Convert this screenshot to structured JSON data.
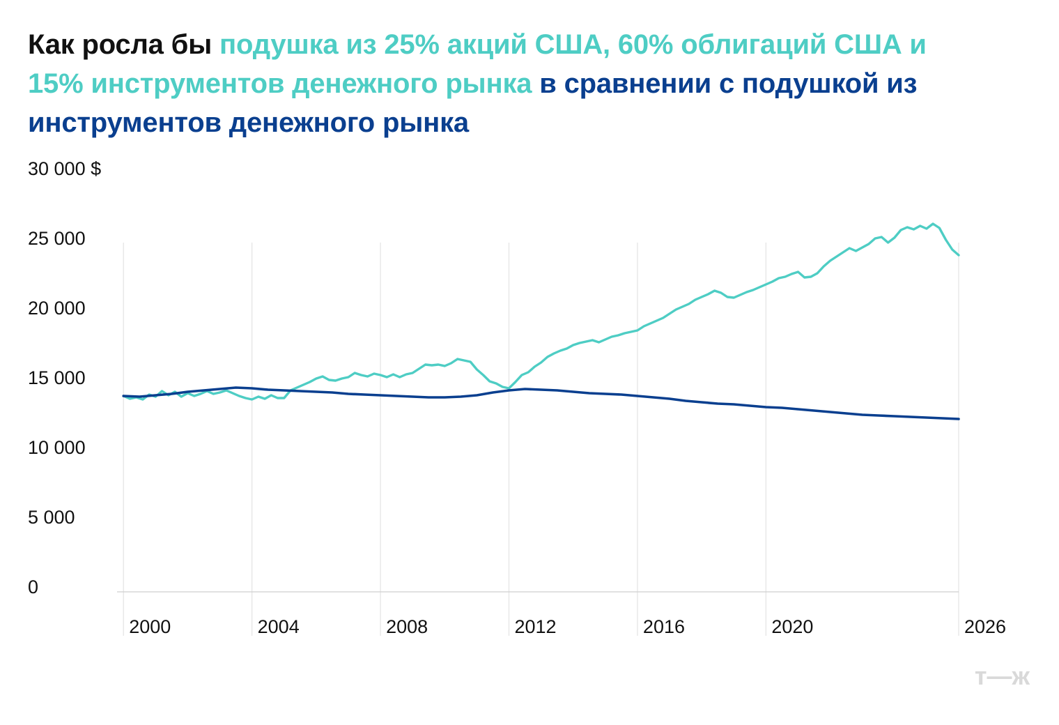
{
  "title": {
    "part1": "Как росла бы ",
    "part2": "подушка из 25% акций США, 60% облигаций США и 15% инструментов денежного рынка",
    "part3": " в сравнении с подушкой из инструментов денежного рынка",
    "color_part1": "#111111",
    "color_part2": "#4ecdc4",
    "color_part3": "#0a3f8f"
  },
  "logo": "т—ж",
  "chart_data": {
    "type": "line",
    "title": "Как росла бы подушка из 25% акций США, 60% облигаций США и 15% инструментов денежного рынка в сравнении с подушкой из инструментов денежного рынка",
    "xlabel": "",
    "ylabel": "",
    "xlim": [
      1999.8,
      2026.0
    ],
    "ylim": [
      0,
      30000
    ],
    "yticks": [
      {
        "value": 0,
        "label": "0"
      },
      {
        "value": 5000,
        "label": "5 000"
      },
      {
        "value": 10000,
        "label": "10 000"
      },
      {
        "value": 15000,
        "label": "15 000"
      },
      {
        "value": 20000,
        "label": "20 000"
      },
      {
        "value": 25000,
        "label": "25 000"
      },
      {
        "value": 30000,
        "label": "30 000 $"
      }
    ],
    "xticks": [
      {
        "value": 2000,
        "label": "2000"
      },
      {
        "value": 2004,
        "label": "2004"
      },
      {
        "value": 2008,
        "label": "2008"
      },
      {
        "value": 2012,
        "label": "2012"
      },
      {
        "value": 2016,
        "label": "2016"
      },
      {
        "value": 2020,
        "label": "2020"
      },
      {
        "value": 2026,
        "label": "2026"
      }
    ],
    "grid": {
      "vertical": true,
      "horizontal": false
    },
    "legend": "none",
    "series": [
      {
        "color": "#4ecdc4",
        "points": [
          [
            2000.0,
            13700
          ],
          [
            2000.2,
            13500
          ],
          [
            2000.4,
            13600
          ],
          [
            2000.6,
            13450
          ],
          [
            2000.8,
            13800
          ],
          [
            2001.0,
            13650
          ],
          [
            2001.2,
            14050
          ],
          [
            2001.4,
            13750
          ],
          [
            2001.6,
            14000
          ],
          [
            2001.8,
            13650
          ],
          [
            2002.0,
            13900
          ],
          [
            2002.2,
            13700
          ],
          [
            2002.4,
            13850
          ],
          [
            2002.6,
            14050
          ],
          [
            2002.8,
            13850
          ],
          [
            2003.0,
            13950
          ],
          [
            2003.2,
            14100
          ],
          [
            2003.4,
            13900
          ],
          [
            2003.6,
            13700
          ],
          [
            2003.8,
            13550
          ],
          [
            2004.0,
            13450
          ],
          [
            2004.2,
            13650
          ],
          [
            2004.4,
            13500
          ],
          [
            2004.6,
            13750
          ],
          [
            2004.8,
            13550
          ],
          [
            2005.0,
            13550
          ],
          [
            2005.2,
            14100
          ],
          [
            2005.4,
            14300
          ],
          [
            2005.6,
            14500
          ],
          [
            2005.8,
            14700
          ],
          [
            2006.0,
            14950
          ],
          [
            2006.2,
            15100
          ],
          [
            2006.4,
            14850
          ],
          [
            2006.6,
            14800
          ],
          [
            2006.8,
            14950
          ],
          [
            2007.0,
            15050
          ],
          [
            2007.2,
            15350
          ],
          [
            2007.4,
            15200
          ],
          [
            2007.6,
            15100
          ],
          [
            2007.8,
            15300
          ],
          [
            2008.0,
            15200
          ],
          [
            2008.2,
            15050
          ],
          [
            2008.4,
            15250
          ],
          [
            2008.6,
            15050
          ],
          [
            2008.8,
            15250
          ],
          [
            2009.0,
            15350
          ],
          [
            2009.2,
            15650
          ],
          [
            2009.4,
            15950
          ],
          [
            2009.6,
            15900
          ],
          [
            2009.8,
            15950
          ],
          [
            2010.0,
            15850
          ],
          [
            2010.2,
            16050
          ],
          [
            2010.4,
            16350
          ],
          [
            2010.6,
            16250
          ],
          [
            2010.8,
            16150
          ],
          [
            2011.0,
            15600
          ],
          [
            2011.2,
            15200
          ],
          [
            2011.4,
            14750
          ],
          [
            2011.6,
            14600
          ],
          [
            2011.8,
            14350
          ],
          [
            2012.0,
            14250
          ],
          [
            2012.2,
            14700
          ],
          [
            2012.4,
            15200
          ],
          [
            2012.6,
            15400
          ],
          [
            2012.8,
            15800
          ],
          [
            2013.0,
            16100
          ],
          [
            2013.2,
            16500
          ],
          [
            2013.4,
            16750
          ],
          [
            2013.6,
            16950
          ],
          [
            2013.8,
            17100
          ],
          [
            2014.0,
            17350
          ],
          [
            2014.2,
            17500
          ],
          [
            2014.4,
            17600
          ],
          [
            2014.6,
            17700
          ],
          [
            2014.8,
            17550
          ],
          [
            2015.0,
            17750
          ],
          [
            2015.2,
            17950
          ],
          [
            2015.4,
            18050
          ],
          [
            2015.6,
            18200
          ],
          [
            2015.8,
            18300
          ],
          [
            2016.0,
            18400
          ],
          [
            2016.2,
            18700
          ],
          [
            2016.4,
            18900
          ],
          [
            2016.6,
            19100
          ],
          [
            2016.8,
            19300
          ],
          [
            2017.0,
            19600
          ],
          [
            2017.2,
            19900
          ],
          [
            2017.4,
            20100
          ],
          [
            2017.6,
            20300
          ],
          [
            2017.8,
            20600
          ],
          [
            2018.0,
            20800
          ],
          [
            2018.2,
            21000
          ],
          [
            2018.4,
            21250
          ],
          [
            2018.6,
            21100
          ],
          [
            2018.8,
            20800
          ],
          [
            2019.0,
            20750
          ],
          [
            2019.2,
            20950
          ],
          [
            2019.4,
            21150
          ],
          [
            2019.6,
            21300
          ],
          [
            2019.8,
            21500
          ],
          [
            2020.0,
            21700
          ],
          [
            2020.2,
            21900
          ],
          [
            2020.4,
            22150
          ],
          [
            2020.6,
            22250
          ],
          [
            2020.8,
            22450
          ],
          [
            2021.0,
            22600
          ],
          [
            2021.2,
            22200
          ],
          [
            2021.4,
            22250
          ],
          [
            2021.6,
            22500
          ],
          [
            2021.8,
            23000
          ],
          [
            2022.0,
            23400
          ],
          [
            2022.2,
            23700
          ],
          [
            2022.4,
            24000
          ],
          [
            2022.6,
            24300
          ],
          [
            2022.8,
            24100
          ],
          [
            2023.0,
            24350
          ],
          [
            2023.2,
            24600
          ],
          [
            2023.4,
            25000
          ],
          [
            2023.6,
            25100
          ],
          [
            2023.8,
            24700
          ],
          [
            2024.0,
            25050
          ],
          [
            2024.2,
            25600
          ],
          [
            2024.4,
            25800
          ],
          [
            2024.6,
            25650
          ],
          [
            2024.8,
            25900
          ],
          [
            2025.0,
            25700
          ],
          [
            2025.2,
            26050
          ],
          [
            2025.4,
            25750
          ],
          [
            2025.6,
            24900
          ],
          [
            2025.8,
            24200
          ],
          [
            2026.0,
            23800
          ]
        ]
      },
      {
        "color": "#0a3f8f",
        "points": [
          [
            2000.0,
            13700
          ],
          [
            2000.5,
            13650
          ],
          [
            2001.0,
            13750
          ],
          [
            2001.5,
            13850
          ],
          [
            2002.0,
            14000
          ],
          [
            2002.5,
            14100
          ],
          [
            2003.0,
            14200
          ],
          [
            2003.5,
            14300
          ],
          [
            2004.0,
            14250
          ],
          [
            2004.5,
            14150
          ],
          [
            2005.0,
            14100
          ],
          [
            2005.5,
            14050
          ],
          [
            2006.0,
            14000
          ],
          [
            2006.5,
            13950
          ],
          [
            2007.0,
            13850
          ],
          [
            2007.5,
            13800
          ],
          [
            2008.0,
            13750
          ],
          [
            2008.5,
            13700
          ],
          [
            2009.0,
            13650
          ],
          [
            2009.5,
            13600
          ],
          [
            2010.0,
            13600
          ],
          [
            2010.5,
            13650
          ],
          [
            2011.0,
            13750
          ],
          [
            2011.5,
            13950
          ],
          [
            2012.0,
            14100
          ],
          [
            2012.5,
            14200
          ],
          [
            2013.0,
            14150
          ],
          [
            2013.5,
            14100
          ],
          [
            2014.0,
            14000
          ],
          [
            2014.5,
            13900
          ],
          [
            2015.0,
            13850
          ],
          [
            2015.5,
            13800
          ],
          [
            2016.0,
            13700
          ],
          [
            2016.5,
            13600
          ],
          [
            2017.0,
            13500
          ],
          [
            2017.5,
            13350
          ],
          [
            2018.0,
            13250
          ],
          [
            2018.5,
            13150
          ],
          [
            2019.0,
            13100
          ],
          [
            2019.5,
            13000
          ],
          [
            2020.0,
            12900
          ],
          [
            2020.5,
            12850
          ],
          [
            2021.0,
            12750
          ],
          [
            2021.5,
            12650
          ],
          [
            2022.0,
            12550
          ],
          [
            2022.5,
            12450
          ],
          [
            2023.0,
            12350
          ],
          [
            2023.5,
            12300
          ],
          [
            2024.0,
            12250
          ],
          [
            2024.5,
            12200
          ],
          [
            2025.0,
            12150
          ],
          [
            2025.5,
            12100
          ],
          [
            2026.0,
            12050
          ]
        ]
      }
    ]
  }
}
